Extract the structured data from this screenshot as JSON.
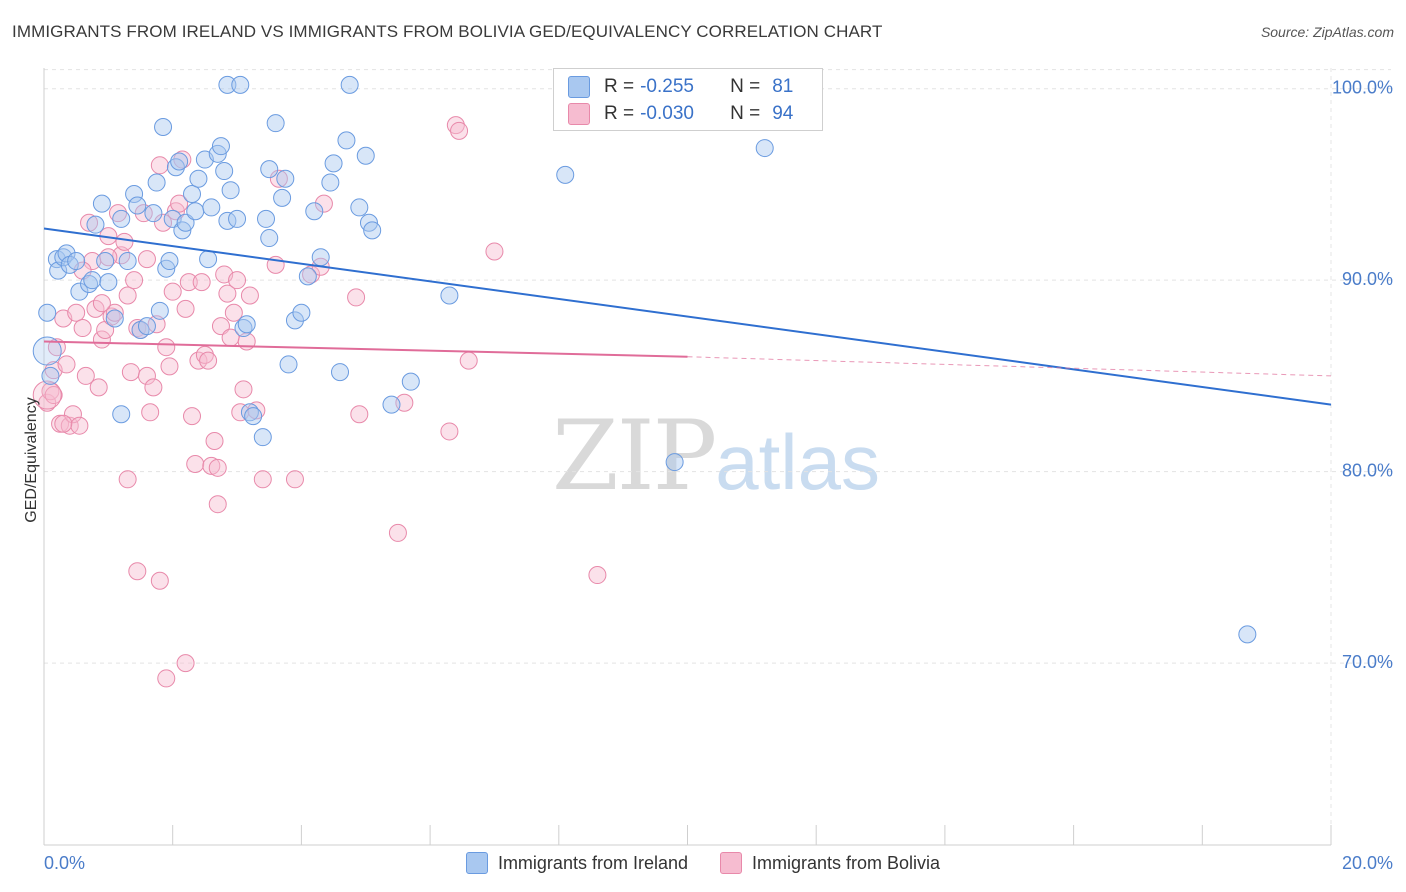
{
  "title": "IMMIGRANTS FROM IRELAND VS IMMIGRANTS FROM BOLIVIA GED/EQUIVALENCY CORRELATION CHART",
  "source": "Source: ZipAtlas.com",
  "watermark": {
    "zip": "ZIP",
    "atlas": "atlas"
  },
  "legend": {
    "ireland": {
      "r_label": "R =",
      "r_value": "-0.255",
      "n_label": "N =",
      "n_value": "81"
    },
    "bolivia": {
      "r_label": "R =",
      "r_value": "-0.030",
      "n_label": "N =",
      "n_value": "94"
    }
  },
  "bottom_legend": {
    "ireland": "Immigrants from Ireland",
    "bolivia": "Immigrants from Bolivia"
  },
  "colors": {
    "ireland_fill": "#a9c8f0",
    "ireland_stroke": "#6a9be0",
    "ireland_line": "#2f6fd0",
    "bolivia_fill": "#f6bcd0",
    "bolivia_stroke": "#e889aa",
    "bolivia_line": "#e06c99",
    "grid": "#e3e3e3",
    "axis_text": "#4a7cc9"
  },
  "chart_data": {
    "type": "scatter",
    "title": "IMMIGRANTS FROM IRELAND VS IMMIGRANTS FROM BOLIVIA GED/EQUIVALENCY CORRELATION CHART",
    "xlabel": "",
    "ylabel": "GED/Equivalency",
    "xlim": [
      0,
      20
    ],
    "ylim": [
      60.5,
      101.5
    ],
    "x_tick_labels": [
      "0.0%",
      "20.0%"
    ],
    "y_ticks": [
      70,
      80,
      90,
      100
    ],
    "y_tick_labels": [
      "70.0%",
      "80.0%",
      "90.0%",
      "100.0%"
    ],
    "grid": true,
    "legend_position": "top-center",
    "series": [
      {
        "name": "Immigrants from Ireland",
        "r": -0.255,
        "n": 81,
        "trend": {
          "x": [
            0,
            20
          ],
          "y": [
            92.7,
            83.5
          ]
        },
        "points": [
          [
            0.05,
            88.3
          ],
          [
            0.1,
            85.0
          ],
          [
            0.2,
            91.1
          ],
          [
            0.22,
            90.5
          ],
          [
            0.3,
            91.2
          ],
          [
            0.35,
            91.4
          ],
          [
            0.4,
            90.8
          ],
          [
            0.5,
            91.0
          ],
          [
            0.55,
            89.4
          ],
          [
            0.7,
            89.8
          ],
          [
            0.75,
            90.0
          ],
          [
            0.8,
            92.9
          ],
          [
            0.9,
            94.0
          ],
          [
            0.95,
            91.0
          ],
          [
            1.0,
            89.9
          ],
          [
            1.1,
            88.0
          ],
          [
            1.2,
            93.2
          ],
          [
            1.3,
            91.0
          ],
          [
            1.4,
            94.5
          ],
          [
            1.45,
            93.9
          ],
          [
            1.5,
            87.4
          ],
          [
            1.6,
            87.6
          ],
          [
            1.7,
            93.5
          ],
          [
            1.75,
            95.1
          ],
          [
            1.8,
            88.4
          ],
          [
            1.9,
            90.6
          ],
          [
            1.95,
            91.0
          ],
          [
            2.0,
            93.2
          ],
          [
            2.05,
            95.9
          ],
          [
            2.1,
            96.2
          ],
          [
            2.15,
            92.6
          ],
          [
            2.2,
            93.0
          ],
          [
            2.3,
            94.5
          ],
          [
            2.35,
            93.6
          ],
          [
            2.4,
            95.3
          ],
          [
            2.5,
            96.3
          ],
          [
            2.55,
            91.1
          ],
          [
            2.6,
            93.8
          ],
          [
            2.7,
            96.6
          ],
          [
            2.75,
            97.0
          ],
          [
            2.8,
            95.7
          ],
          [
            2.85,
            93.1
          ],
          [
            2.9,
            94.7
          ],
          [
            3.0,
            93.2
          ],
          [
            3.1,
            87.5
          ],
          [
            3.15,
            87.7
          ],
          [
            3.2,
            83.1
          ],
          [
            3.25,
            82.9
          ],
          [
            3.4,
            81.8
          ],
          [
            3.45,
            93.2
          ],
          [
            3.5,
            95.8
          ],
          [
            3.6,
            98.2
          ],
          [
            3.7,
            94.3
          ],
          [
            3.75,
            95.3
          ],
          [
            3.8,
            85.6
          ],
          [
            3.9,
            87.9
          ],
          [
            4.0,
            88.3
          ],
          [
            4.1,
            90.2
          ],
          [
            4.2,
            93.6
          ],
          [
            4.3,
            91.2
          ],
          [
            4.45,
            95.1
          ],
          [
            4.5,
            96.1
          ],
          [
            4.6,
            85.2
          ],
          [
            4.7,
            97.3
          ],
          [
            4.9,
            93.8
          ],
          [
            5.0,
            96.5
          ],
          [
            5.05,
            93.0
          ],
          [
            5.1,
            92.6
          ],
          [
            5.4,
            83.5
          ],
          [
            5.7,
            84.7
          ],
          [
            6.3,
            89.2
          ],
          [
            3.5,
            92.2
          ],
          [
            2.85,
            100.2
          ],
          [
            3.05,
            100.2
          ],
          [
            4.75,
            100.2
          ],
          [
            1.85,
            98.0
          ],
          [
            8.1,
            95.5
          ],
          [
            11.2,
            96.9
          ],
          [
            9.8,
            80.5
          ],
          [
            18.7,
            71.5
          ],
          [
            1.2,
            83.0
          ]
        ]
      },
      {
        "name": "Immigrants from Bolivia",
        "r": -0.03,
        "n": 94,
        "trend": {
          "x": [
            0,
            10
          ],
          "y": [
            86.8,
            86.0
          ]
        },
        "trend_dashed": {
          "x": [
            10,
            20
          ],
          "y": [
            86.0,
            85.0
          ]
        },
        "points": [
          [
            0.05,
            83.6
          ],
          [
            0.1,
            84.2
          ],
          [
            0.15,
            85.3
          ],
          [
            0.2,
            86.5
          ],
          [
            0.25,
            82.5
          ],
          [
            0.3,
            88.0
          ],
          [
            0.35,
            85.6
          ],
          [
            0.4,
            82.4
          ],
          [
            0.45,
            83.0
          ],
          [
            0.5,
            88.3
          ],
          [
            0.55,
            82.4
          ],
          [
            0.6,
            87.5
          ],
          [
            0.65,
            85.0
          ],
          [
            0.7,
            93.0
          ],
          [
            0.75,
            91.0
          ],
          [
            0.8,
            88.5
          ],
          [
            0.85,
            84.4
          ],
          [
            0.9,
            86.9
          ],
          [
            0.95,
            87.4
          ],
          [
            1.0,
            92.3
          ],
          [
            1.05,
            88.1
          ],
          [
            1.1,
            88.3
          ],
          [
            1.15,
            93.5
          ],
          [
            1.2,
            91.3
          ],
          [
            1.25,
            92.0
          ],
          [
            1.3,
            89.2
          ],
          [
            1.35,
            85.2
          ],
          [
            1.4,
            90.0
          ],
          [
            1.45,
            87.5
          ],
          [
            1.5,
            87.4
          ],
          [
            1.55,
            93.5
          ],
          [
            1.6,
            85.0
          ],
          [
            1.65,
            83.1
          ],
          [
            1.7,
            84.4
          ],
          [
            1.75,
            87.7
          ],
          [
            1.8,
            96.0
          ],
          [
            1.85,
            93.0
          ],
          [
            1.9,
            86.5
          ],
          [
            1.95,
            85.5
          ],
          [
            2.0,
            89.4
          ],
          [
            2.05,
            93.6
          ],
          [
            2.1,
            94.0
          ],
          [
            2.15,
            96.3
          ],
          [
            2.2,
            88.5
          ],
          [
            2.25,
            89.9
          ],
          [
            2.3,
            82.9
          ],
          [
            2.35,
            80.4
          ],
          [
            2.4,
            85.8
          ],
          [
            2.45,
            89.9
          ],
          [
            2.5,
            86.1
          ],
          [
            2.55,
            85.8
          ],
          [
            2.6,
            80.3
          ],
          [
            2.65,
            81.6
          ],
          [
            2.7,
            78.3
          ],
          [
            2.75,
            87.6
          ],
          [
            2.8,
            90.3
          ],
          [
            2.85,
            89.3
          ],
          [
            2.9,
            87.0
          ],
          [
            2.95,
            88.3
          ],
          [
            3.0,
            90.0
          ],
          [
            3.05,
            83.1
          ],
          [
            3.1,
            84.3
          ],
          [
            3.15,
            86.8
          ],
          [
            3.2,
            89.2
          ],
          [
            3.3,
            83.2
          ],
          [
            3.4,
            79.6
          ],
          [
            3.6,
            90.8
          ],
          [
            3.65,
            95.3
          ],
          [
            3.9,
            79.6
          ],
          [
            4.15,
            90.3
          ],
          [
            4.3,
            90.7
          ],
          [
            4.35,
            94.0
          ],
          [
            4.85,
            89.1
          ],
          [
            4.9,
            83.0
          ],
          [
            5.6,
            83.6
          ],
          [
            5.5,
            76.8
          ],
          [
            6.3,
            82.1
          ],
          [
            6.4,
            98.1
          ],
          [
            6.45,
            97.8
          ],
          [
            6.6,
            85.8
          ],
          [
            7.0,
            91.5
          ],
          [
            8.6,
            74.6
          ],
          [
            1.3,
            79.6
          ],
          [
            1.45,
            74.8
          ],
          [
            1.8,
            74.3
          ],
          [
            1.9,
            69.2
          ],
          [
            2.2,
            70.0
          ],
          [
            0.3,
            82.5
          ],
          [
            0.15,
            84.0
          ],
          [
            0.6,
            90.5
          ],
          [
            1.0,
            91.2
          ],
          [
            0.9,
            88.8
          ],
          [
            1.6,
            91.1
          ],
          [
            2.7,
            80.2
          ]
        ]
      }
    ]
  }
}
